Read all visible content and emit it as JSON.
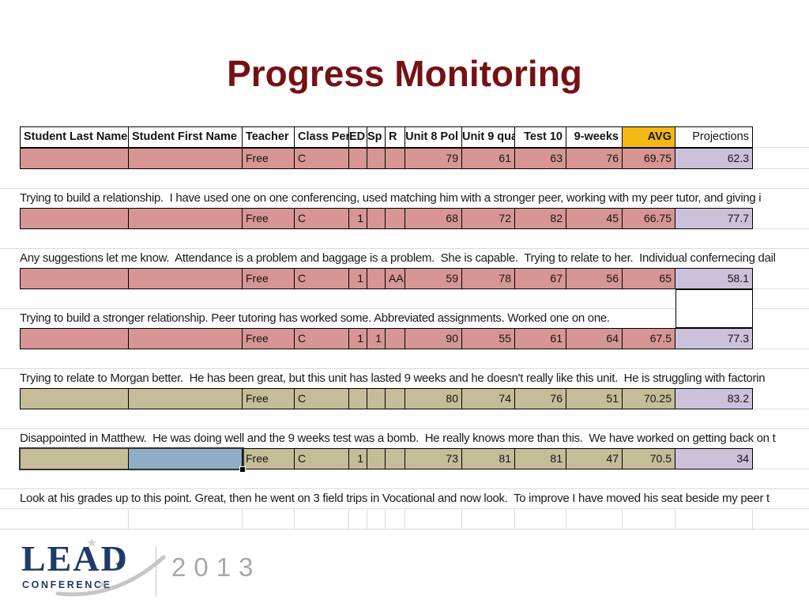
{
  "slide": {
    "title": "Progress Monitoring",
    "title_color": "#751114"
  },
  "colors": {
    "row_pink": "#D79694",
    "row_khaki": "#C4BD97",
    "projection_lavender": "#CCC1DA",
    "avg_header_orange": "#F5B914",
    "selected_cell_blue": "#8FAEC5",
    "title_maroon": "#751114",
    "logo_navy": "#1E3A68",
    "gridline_gray": "#DADADA"
  },
  "table": {
    "columns": [
      "Student Last Name",
      "Student First Name",
      "Teacher",
      "Class Peri",
      "ED",
      "Sp",
      "R",
      "Unit 8 Pol",
      "Unit 9 qua",
      "Test 10",
      "9-weeks",
      "AVG",
      "Projections"
    ],
    "rows": [
      {
        "type": "header"
      },
      {
        "type": "data",
        "fill": "pink",
        "cells": [
          "",
          "",
          "Free",
          "C",
          "",
          "",
          "",
          "79",
          "61",
          "63",
          "76",
          "69.75",
          "62.3"
        ]
      },
      {
        "type": "gap"
      },
      {
        "type": "note",
        "text": "Trying to build a relationship.  I have used one on one conferencing, used matching him with a stronger peer, working with my peer tutor, and giving i"
      },
      {
        "type": "data",
        "fill": "pink",
        "cells": [
          "",
          "",
          "Free",
          "C",
          "1",
          "",
          "",
          "68",
          "72",
          "82",
          "45",
          "66.75",
          "77.7"
        ]
      },
      {
        "type": "gap"
      },
      {
        "type": "note",
        "text": "Any suggestions let me know.  Attendance is a problem and baggage is a problem.  She is capable.  Trying to relate to her.  Individual confernecing dail"
      },
      {
        "type": "data",
        "fill": "pink",
        "cells": [
          "",
          "",
          "Free",
          "C",
          "1",
          "",
          "AA",
          "59",
          "78",
          "67",
          "56",
          "65",
          "58.1"
        ]
      },
      {
        "type": "gap",
        "box": true
      },
      {
        "type": "note",
        "text": "Trying to build a stronger relationship. Peer tutoring has worked some. Abbreviated assignments. Worked one on one."
      },
      {
        "type": "data",
        "fill": "pink",
        "cells": [
          "",
          "",
          "Free",
          "C",
          "1",
          "1",
          "",
          "90",
          "55",
          "61",
          "64",
          "67.5",
          "77.3"
        ]
      },
      {
        "type": "gap"
      },
      {
        "type": "note",
        "text": "Trying to relate to Morgan better.  He has been great, but this unit has lasted 9 weeks and he doesn't really like this unit.  He is struggling with factorin"
      },
      {
        "type": "data",
        "fill": "khaki",
        "cells": [
          "",
          "",
          "Free",
          "C",
          "",
          "",
          "",
          "80",
          "74",
          "76",
          "51",
          "70.25",
          "83.2"
        ]
      },
      {
        "type": "gap"
      },
      {
        "type": "note",
        "text": "Disappointed in Matthew.  He was doing well and the 9 weeks test was a bomb.  He really knows more than this.  We have worked on getting back on t"
      },
      {
        "type": "data",
        "fill": "khaki",
        "selected": true,
        "cells": [
          "",
          "",
          "Free",
          "C",
          "1",
          "",
          "",
          "73",
          "81",
          "81",
          "47",
          "70.5",
          "34"
        ]
      },
      {
        "type": "gap"
      },
      {
        "type": "note",
        "text": "Look at his grades up to this point. Great, then he went on 3 field trips in Vocational and now look.  To improve I have moved his seat beside my peer t"
      },
      {
        "type": "emptygrid"
      }
    ]
  },
  "logo": {
    "lead": "LEAD",
    "conference": "CONFERENCE",
    "year": "2013",
    "star_icon": "★"
  }
}
